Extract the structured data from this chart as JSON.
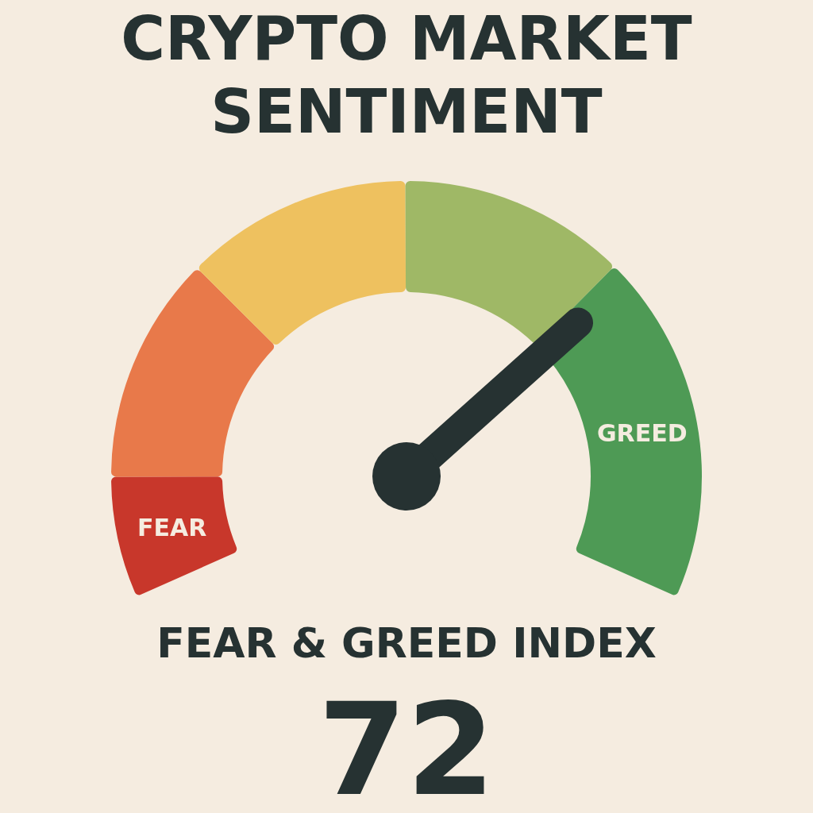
{
  "chart_data": {
    "type": "donut",
    "title": "CRYPTO MARKET SENTIMENT",
    "xlabel": "FEAR & GREED INDEX",
    "categories": [
      "FEAR",
      null,
      null,
      null,
      "GREED"
    ],
    "values": [
      10.5,
      19.7,
      19.7,
      19.7,
      30.4
    ],
    "colors": [
      "#c8372b",
      "#e8794a",
      "#eec15f",
      "#9fb866",
      "#4e9a55"
    ],
    "needle": "GREED",
    "annotations": [
      "72"
    ]
  }
}
